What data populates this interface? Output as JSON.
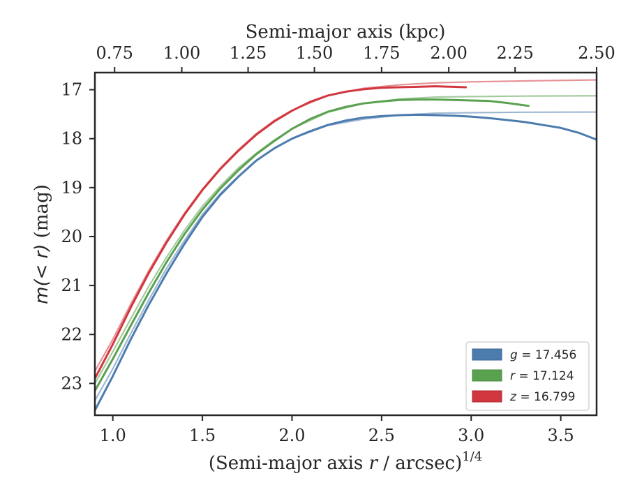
{
  "chart_data": {
    "type": "line",
    "xlabel_bottom": "(Semi-major axis r / arcsec)^1/4",
    "xlabel_bottom_parts": {
      "prefix": "(Semi-major axis ",
      "var": "r",
      "suffix": " / arcsec)",
      "exp": "1/4"
    },
    "xlabel_top": "Semi-major axis (kpc)",
    "ylabel": "m(< r) (mag)",
    "ylabel_parts": {
      "math": "m(< r)",
      "unit": " (mag)"
    },
    "xlim": [
      0.9,
      3.7
    ],
    "ylim": [
      23.65,
      16.65
    ],
    "y_inverted": true,
    "x_ticks": [
      "1.0",
      "1.5",
      "2.0",
      "2.5",
      "3.0",
      "3.5"
    ],
    "x_tick_values": [
      1.0,
      1.5,
      2.0,
      2.5,
      3.0,
      3.5
    ],
    "y_ticks": [
      "17",
      "18",
      "19",
      "20",
      "21",
      "22",
      "23"
    ],
    "y_tick_values": [
      17,
      18,
      19,
      20,
      21,
      22,
      23
    ],
    "top_ticks": [
      "0.75",
      "1.00",
      "1.25",
      "1.50",
      "1.75",
      "2.00",
      "2.25",
      "2.50"
    ],
    "top_tick_positions_bottom_units": [
      1.01,
      1.385,
      1.755,
      2.125,
      2.5,
      2.875,
      3.245,
      3.7
    ],
    "legend_position": "lower-right",
    "series": [
      {
        "name": "g = 17.456",
        "legend_var": "g",
        "legend_value": "17.456",
        "color": "#4c7cae",
        "data": [
          [
            0.9,
            23.55
          ],
          [
            1.0,
            22.85
          ],
          [
            1.1,
            22.1
          ],
          [
            1.2,
            21.4
          ],
          [
            1.3,
            20.75
          ],
          [
            1.4,
            20.15
          ],
          [
            1.5,
            19.6
          ],
          [
            1.6,
            19.15
          ],
          [
            1.7,
            18.78
          ],
          [
            1.8,
            18.45
          ],
          [
            1.9,
            18.2
          ],
          [
            2.0,
            18.0
          ],
          [
            2.1,
            17.85
          ],
          [
            2.2,
            17.72
          ],
          [
            2.3,
            17.63
          ],
          [
            2.4,
            17.57
          ],
          [
            2.5,
            17.54
          ],
          [
            2.6,
            17.52
          ],
          [
            2.7,
            17.51
          ],
          [
            2.8,
            17.52
          ],
          [
            2.9,
            17.53
          ],
          [
            3.0,
            17.55
          ],
          [
            3.1,
            17.58
          ],
          [
            3.2,
            17.62
          ],
          [
            3.3,
            17.66
          ],
          [
            3.4,
            17.72
          ],
          [
            3.5,
            17.78
          ],
          [
            3.6,
            17.88
          ],
          [
            3.7,
            18.02
          ]
        ],
        "model": [
          [
            0.9,
            23.35
          ],
          [
            1.0,
            22.7
          ],
          [
            1.1,
            21.98
          ],
          [
            1.2,
            21.3
          ],
          [
            1.3,
            20.65
          ],
          [
            1.4,
            20.08
          ],
          [
            1.5,
            19.55
          ],
          [
            1.6,
            19.12
          ],
          [
            1.7,
            18.77
          ],
          [
            1.8,
            18.45
          ],
          [
            1.9,
            18.2
          ],
          [
            2.0,
            18.0
          ],
          [
            2.2,
            17.73
          ],
          [
            2.4,
            17.6
          ],
          [
            2.6,
            17.52
          ],
          [
            2.8,
            17.48
          ],
          [
            3.0,
            17.47
          ],
          [
            3.3,
            17.46
          ],
          [
            3.7,
            17.456
          ]
        ]
      },
      {
        "name": "r = 17.124",
        "legend_var": "r",
        "legend_value": "17.124",
        "color": "#59a14f",
        "data": [
          [
            0.9,
            23.15
          ],
          [
            1.0,
            22.5
          ],
          [
            1.1,
            21.82
          ],
          [
            1.2,
            21.15
          ],
          [
            1.3,
            20.52
          ],
          [
            1.4,
            19.95
          ],
          [
            1.5,
            19.45
          ],
          [
            1.6,
            19.02
          ],
          [
            1.7,
            18.65
          ],
          [
            1.8,
            18.32
          ],
          [
            1.9,
            18.05
          ],
          [
            2.0,
            17.8
          ],
          [
            2.1,
            17.6
          ],
          [
            2.2,
            17.45
          ],
          [
            2.3,
            17.35
          ],
          [
            2.4,
            17.28
          ],
          [
            2.5,
            17.24
          ],
          [
            2.6,
            17.21
          ],
          [
            2.7,
            17.2
          ],
          [
            2.8,
            17.2
          ],
          [
            2.9,
            17.21
          ],
          [
            3.0,
            17.22
          ],
          [
            3.1,
            17.23
          ],
          [
            3.2,
            17.27
          ],
          [
            3.32,
            17.33
          ]
        ],
        "model": [
          [
            0.9,
            23.0
          ],
          [
            1.0,
            22.35
          ],
          [
            1.1,
            21.68
          ],
          [
            1.2,
            21.02
          ],
          [
            1.3,
            20.42
          ],
          [
            1.4,
            19.87
          ],
          [
            1.5,
            19.38
          ],
          [
            1.6,
            18.97
          ],
          [
            1.7,
            18.6
          ],
          [
            1.8,
            18.3
          ],
          [
            1.9,
            18.03
          ],
          [
            2.0,
            17.8
          ],
          [
            2.2,
            17.46
          ],
          [
            2.4,
            17.28
          ],
          [
            2.6,
            17.19
          ],
          [
            2.8,
            17.15
          ],
          [
            3.0,
            17.14
          ],
          [
            3.3,
            17.13
          ],
          [
            3.7,
            17.124
          ]
        ]
      },
      {
        "name": "z = 16.799",
        "legend_var": "z",
        "legend_value": "16.799",
        "color": "#d1373e",
        "data": [
          [
            0.9,
            22.9
          ],
          [
            1.0,
            22.2
          ],
          [
            1.1,
            21.45
          ],
          [
            1.2,
            20.75
          ],
          [
            1.3,
            20.12
          ],
          [
            1.4,
            19.55
          ],
          [
            1.5,
            19.05
          ],
          [
            1.6,
            18.62
          ],
          [
            1.7,
            18.25
          ],
          [
            1.8,
            17.92
          ],
          [
            1.9,
            17.65
          ],
          [
            2.0,
            17.43
          ],
          [
            2.1,
            17.25
          ],
          [
            2.2,
            17.12
          ],
          [
            2.3,
            17.04
          ],
          [
            2.4,
            16.99
          ],
          [
            2.5,
            16.96
          ],
          [
            2.6,
            16.95
          ],
          [
            2.7,
            16.94
          ],
          [
            2.8,
            16.93
          ],
          [
            2.9,
            16.94
          ],
          [
            2.97,
            16.95
          ]
        ],
        "model": [
          [
            0.9,
            22.75
          ],
          [
            1.0,
            22.1
          ],
          [
            1.1,
            21.38
          ],
          [
            1.2,
            20.7
          ],
          [
            1.3,
            20.08
          ],
          [
            1.4,
            19.52
          ],
          [
            1.5,
            19.03
          ],
          [
            1.6,
            18.6
          ],
          [
            1.7,
            18.23
          ],
          [
            1.8,
            17.9
          ],
          [
            1.9,
            17.63
          ],
          [
            2.0,
            17.42
          ],
          [
            2.2,
            17.12
          ],
          [
            2.4,
            16.97
          ],
          [
            2.6,
            16.9
          ],
          [
            2.8,
            16.86
          ],
          [
            3.0,
            16.84
          ],
          [
            3.3,
            16.82
          ],
          [
            3.7,
            16.8
          ]
        ]
      }
    ]
  }
}
